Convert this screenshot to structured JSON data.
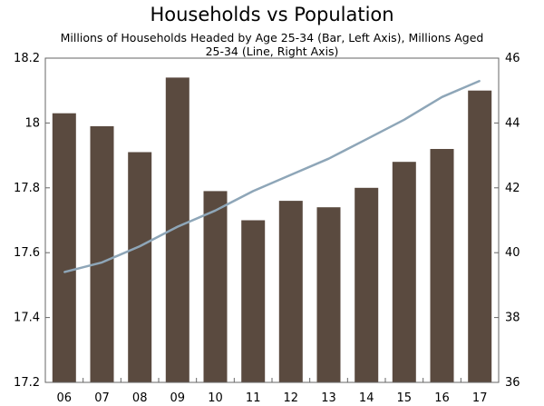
{
  "chart_data": {
    "type": "bar",
    "title": "Households vs Population",
    "subtitle": "Millions of Households Headed by Age 25-34 (Bar, Left Axis), Millions Aged 25-34 (Line, Right Axis)",
    "categories": [
      "06",
      "07",
      "08",
      "09",
      "10",
      "11",
      "12",
      "13",
      "14",
      "15",
      "16",
      "17"
    ],
    "series": [
      {
        "type": "bar",
        "axis": "left",
        "values": [
          18.03,
          17.99,
          17.91,
          18.14,
          17.79,
          17.7,
          17.76,
          17.74,
          17.8,
          17.88,
          17.92,
          18.1
        ]
      },
      {
        "type": "line",
        "axis": "right",
        "values": [
          39.4,
          39.7,
          40.2,
          40.8,
          41.3,
          41.9,
          42.4,
          42.9,
          43.5,
          44.1,
          44.8,
          45.3
        ]
      }
    ],
    "left_axis": {
      "min": 17.2,
      "max": 18.2,
      "ticks": [
        "17.2",
        "17.4",
        "17.6",
        "17.8",
        "18",
        "18.2"
      ]
    },
    "right_axis": {
      "min": 36,
      "max": 46,
      "ticks": [
        "36",
        "38",
        "40",
        "42",
        "44",
        "46"
      ]
    },
    "grid": false,
    "colors": {
      "bar": "#5a4a3f",
      "line": "#8ea6b8",
      "axis": "#666666"
    }
  }
}
